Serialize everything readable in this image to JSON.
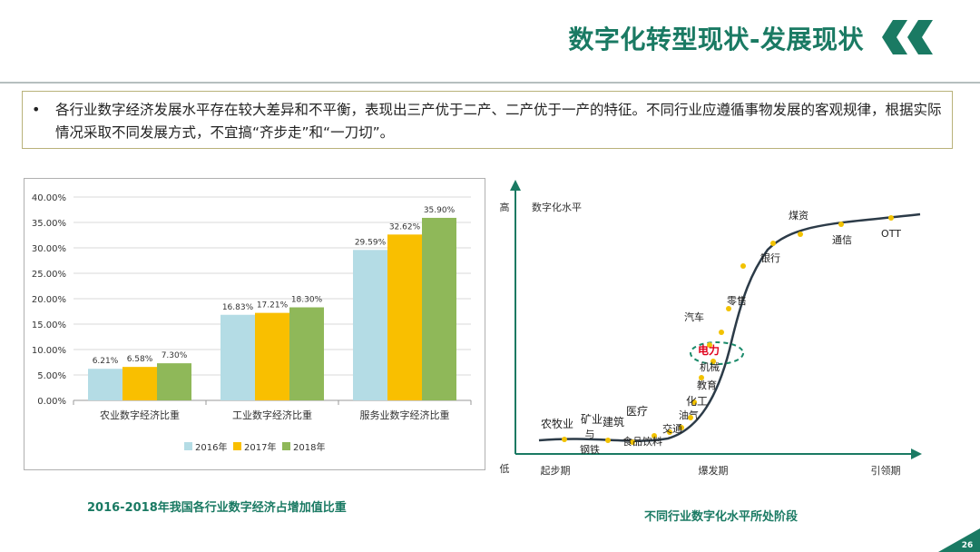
{
  "slide": {
    "title": "数字化转型现状-发展现状",
    "bullet": "各行业数字经济发展水平存在较大差异和不平衡，表现出三产优于二产、二产优于一产的特征。不同行业应遵循事物发展的客观规律，根据实际情况采取不同发展方式，不宜搞“齐步走”和“一刀切”。",
    "bullet_marker": "•",
    "left_caption": "2016-2018年我国各行业数字经济占增加值比重",
    "right_caption": "不同行业数字化水平所处阶段",
    "page_number": "26",
    "colors": {
      "accent": "#1a7a63",
      "dot": "#f2c200",
      "ellipse": "#1a8a6a",
      "highlight": "#e0001b"
    }
  },
  "chart_data": [
    {
      "type": "bar",
      "title": "",
      "categories": [
        "农业数字经济比重",
        "工业数字经济比重",
        "服务业数字经济比重"
      ],
      "series": [
        {
          "name": "2016年",
          "values": [
            6.21,
            16.83,
            29.59
          ],
          "labels": [
            "6.21%",
            "16.83%",
            "29.59%"
          ],
          "color": "#b4dce5"
        },
        {
          "name": "2017年",
          "values": [
            6.58,
            17.21,
            32.62
          ],
          "labels": [
            "6.58%",
            "17.21%",
            "32.62%"
          ],
          "color": "#f9bf00"
        },
        {
          "name": "2018年",
          "values": [
            7.3,
            18.3,
            35.9
          ],
          "labels": [
            "7.30%",
            "18.30%",
            "35.90%"
          ],
          "color": "#8fb859"
        }
      ],
      "ylim": [
        0,
        40
      ],
      "yticks": [
        "0.00%",
        "5.00%",
        "10.00%",
        "15.00%",
        "20.00%",
        "25.00%",
        "30.00%",
        "35.00%",
        "40.00%"
      ],
      "grid": true,
      "legend": "bottom"
    },
    {
      "type": "line",
      "title": "",
      "ylabel": "数字化水平",
      "y_high": "高",
      "y_low": "低",
      "stages": [
        "起步期",
        "爆发期",
        "引领期"
      ],
      "industries": [
        {
          "name": "农牧业"
        },
        {
          "name": "矿业"
        },
        {
          "name": "与"
        },
        {
          "name": "钢铁"
        },
        {
          "name": "建筑"
        },
        {
          "name": "医疗"
        },
        {
          "name": "食品饮料"
        },
        {
          "name": "交通"
        },
        {
          "name": "油气"
        },
        {
          "name": "化工"
        },
        {
          "name": "教育"
        },
        {
          "name": "机械"
        },
        {
          "name": "电力",
          "highlighted": true
        },
        {
          "name": "汽车"
        },
        {
          "name": "零售"
        },
        {
          "name": "银行"
        },
        {
          "name": "煤资"
        },
        {
          "name": "通信"
        },
        {
          "name": "OTT"
        }
      ]
    }
  ]
}
